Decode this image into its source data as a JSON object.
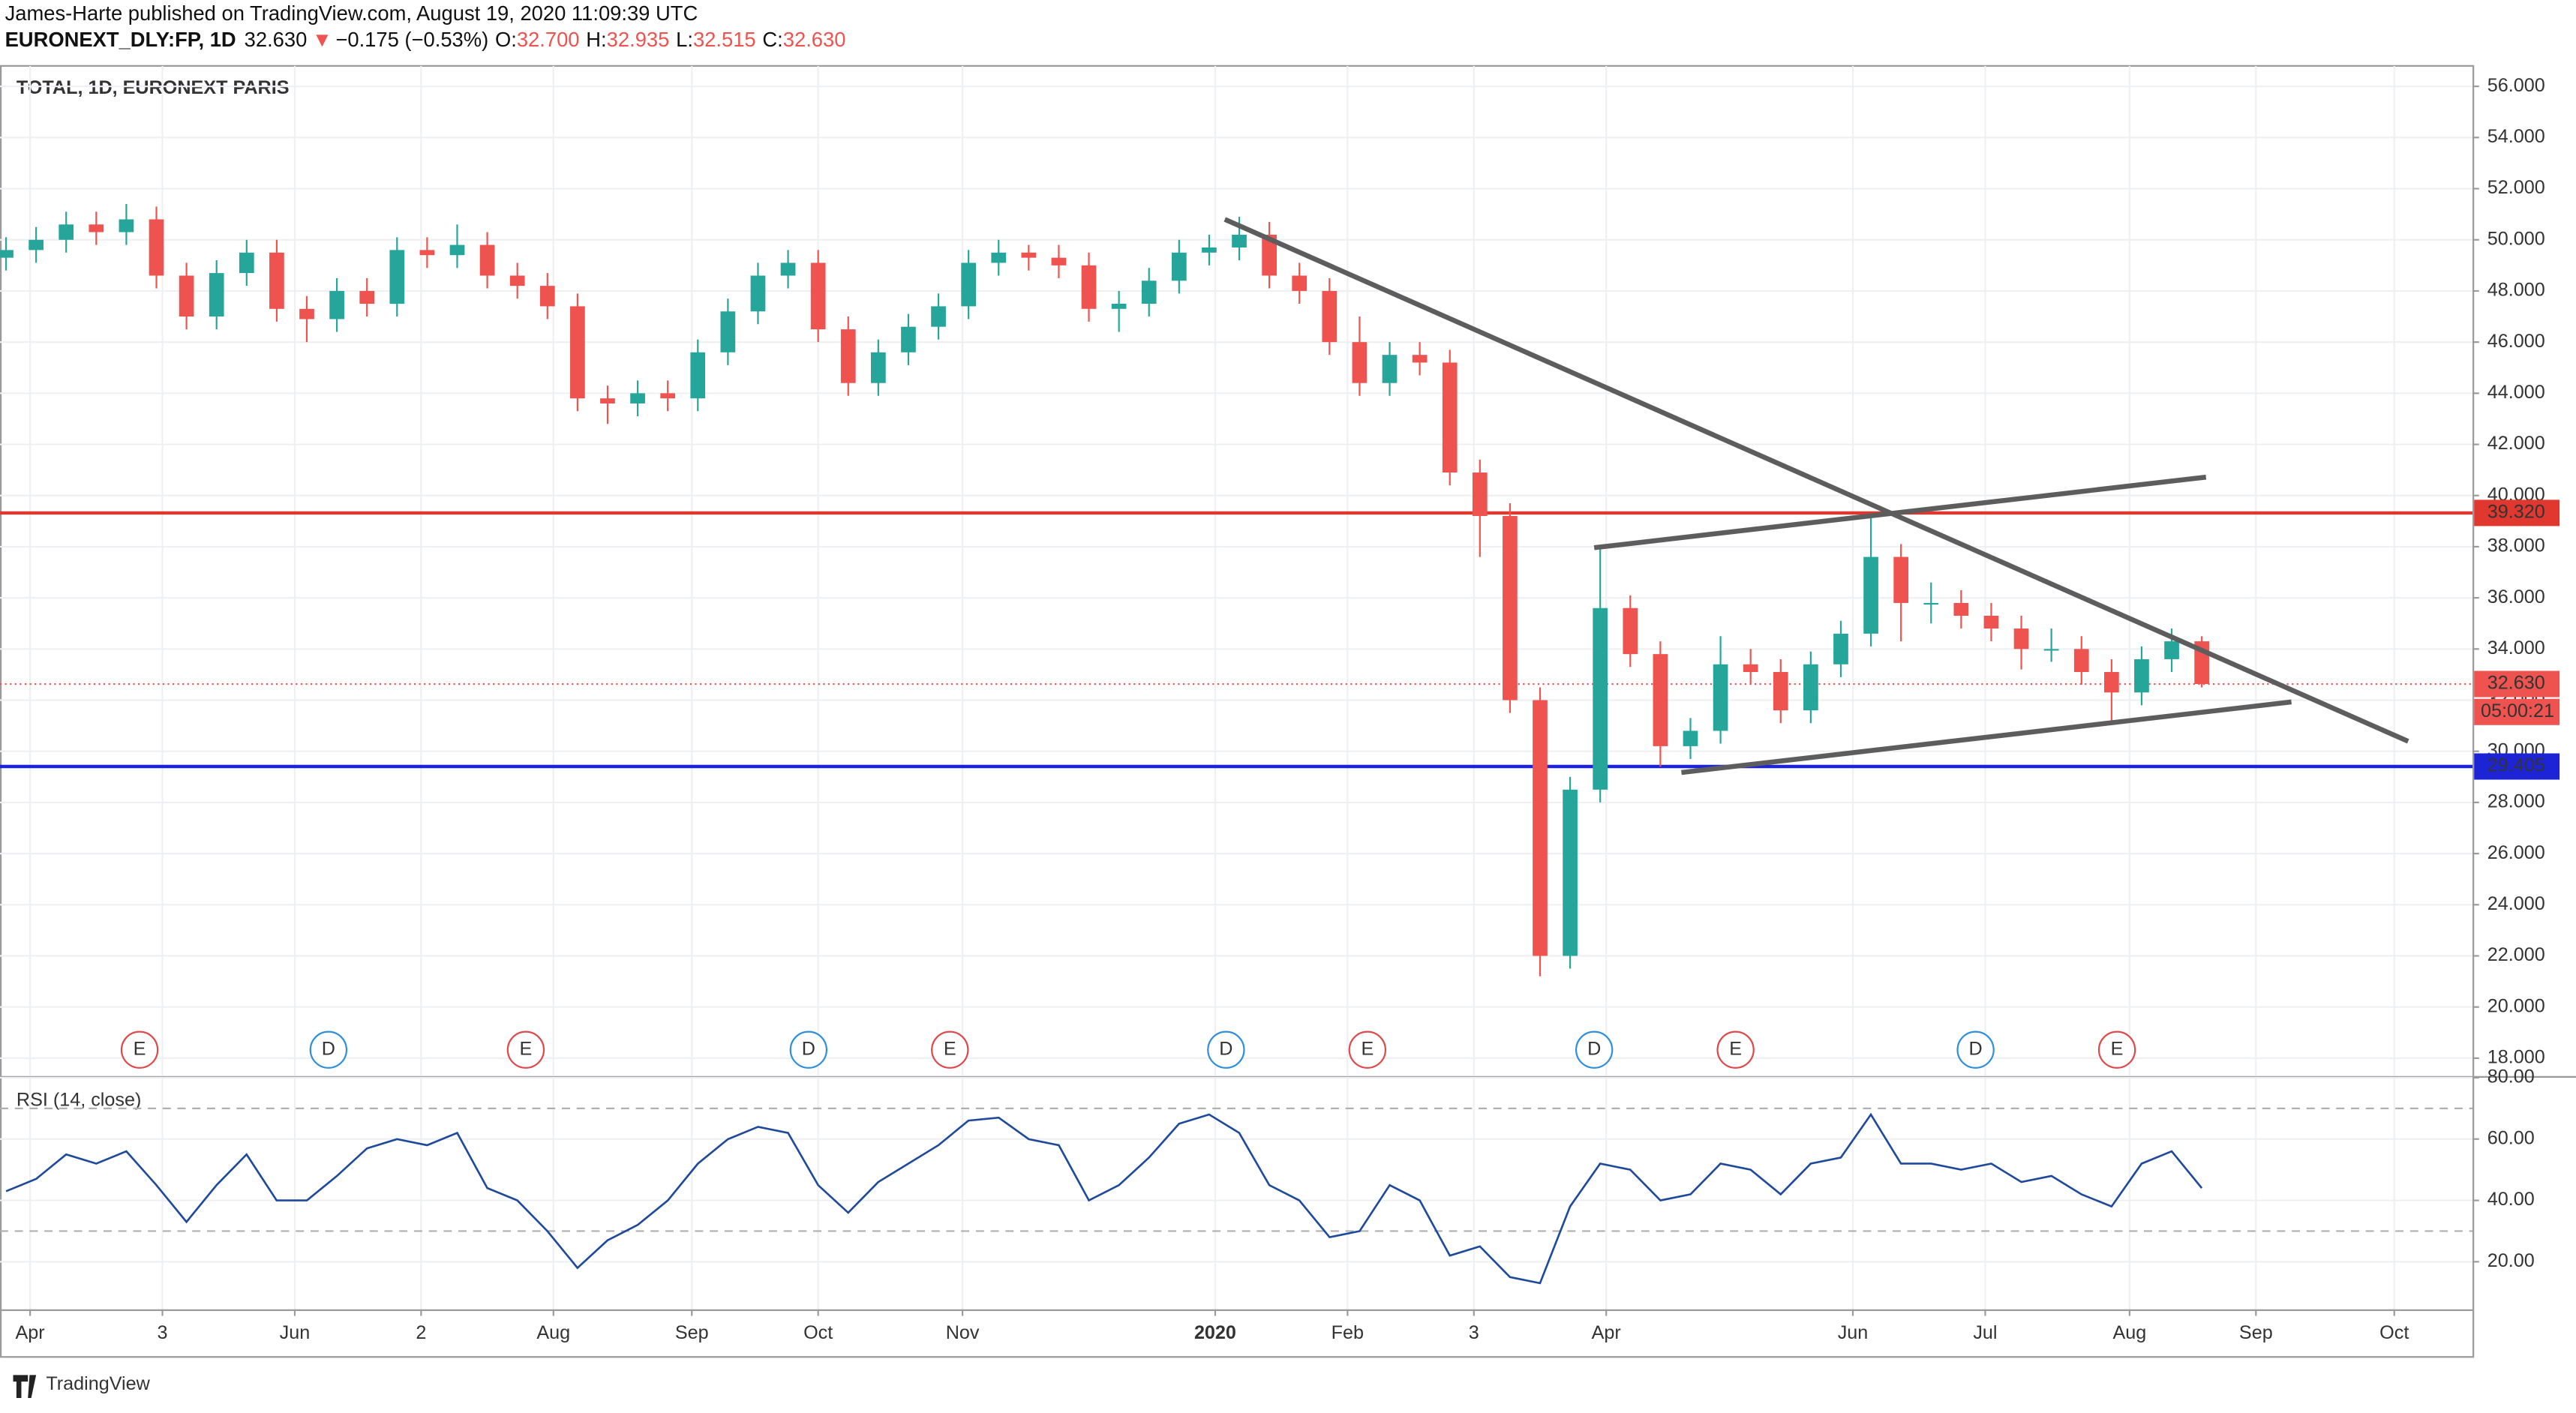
{
  "header": {
    "publisher": "James-Harte published on TradingView.com, August 19, 2020 11:09:39 UTC",
    "symbol": "EURONEXT_DLY:FP, 1D",
    "last": "32.630",
    "arrow": "▼",
    "change": "−0.175 (−0.53%)",
    "ohlc": [
      {
        "label": "O:",
        "value": "32.700"
      },
      {
        "label": "H:",
        "value": "32.935"
      },
      {
        "label": "L:",
        "value": "32.515"
      },
      {
        "label": "C:",
        "value": "32.630"
      }
    ]
  },
  "chart_data": {
    "type": "candlestick",
    "title": "TOTAL, 1D, EURONEXT PARIS",
    "x": [
      1,
      6,
      11,
      16,
      21,
      26,
      31,
      36,
      41,
      46,
      51,
      56,
      61,
      66,
      71,
      76,
      81,
      86,
      91,
      96,
      101,
      106,
      111,
      116,
      121,
      126,
      131,
      136,
      141,
      146,
      151,
      156,
      161,
      166,
      171,
      176,
      181,
      186,
      191,
      196,
      201,
      206,
      211,
      216,
      221,
      226,
      231,
      236,
      241,
      246,
      251,
      256,
      261,
      266,
      271,
      276,
      281,
      286,
      291,
      296,
      301,
      306,
      311,
      316,
      321,
      326,
      331,
      336,
      341,
      346,
      351,
      356,
      361,
      366
    ],
    "open": [
      49.3,
      49.6,
      50.0,
      50.6,
      50.3,
      50.8,
      48.6,
      47.0,
      48.7,
      49.5,
      47.3,
      46.9,
      48.0,
      47.5,
      49.6,
      49.4,
      49.8,
      48.6,
      48.2,
      47.4,
      43.8,
      43.6,
      44.0,
      43.8,
      45.6,
      47.2,
      48.6,
      49.1,
      46.5,
      44.4,
      45.6,
      46.6,
      47.4,
      49.1,
      49.5,
      49.3,
      49.0,
      47.3,
      47.5,
      48.4,
      49.5,
      49.7,
      50.2,
      48.6,
      48.0,
      46.0,
      44.4,
      45.5,
      45.2,
      40.9,
      39.2,
      32.0,
      22.0,
      28.5,
      35.6,
      33.8,
      30.2,
      30.8,
      33.4,
      33.1,
      31.6,
      33.4,
      34.6,
      37.6,
      35.8,
      35.8,
      35.3,
      34.8,
      34.0,
      34.0,
      33.1,
      32.3,
      33.6,
      34.3
    ],
    "high": [
      50.1,
      50.5,
      51.1,
      51.1,
      51.4,
      51.3,
      49.1,
      49.2,
      50.0,
      50.0,
      47.8,
      48.5,
      48.5,
      50.1,
      50.1,
      50.6,
      50.3,
      49.1,
      48.7,
      47.9,
      44.3,
      44.5,
      44.5,
      46.1,
      47.7,
      49.1,
      49.6,
      49.6,
      47.0,
      46.1,
      47.1,
      47.9,
      49.6,
      50.0,
      49.8,
      49.8,
      49.5,
      48.0,
      48.9,
      50.0,
      50.2,
      50.9,
      50.7,
      49.1,
      48.5,
      47.0,
      46.0,
      46.0,
      45.7,
      41.4,
      39.7,
      32.5,
      29.0,
      38.0,
      36.1,
      34.3,
      31.3,
      34.5,
      34.0,
      33.6,
      33.9,
      35.1,
      39.3,
      38.1,
      36.6,
      36.3,
      35.8,
      35.3,
      34.8,
      34.5,
      33.6,
      34.1,
      34.8,
      34.5
    ],
    "low": [
      48.8,
      49.1,
      49.5,
      49.8,
      49.8,
      48.1,
      46.5,
      46.5,
      48.2,
      46.8,
      46.0,
      46.4,
      47.0,
      47.0,
      48.9,
      48.9,
      48.1,
      47.7,
      46.9,
      43.3,
      42.8,
      43.1,
      43.3,
      43.3,
      45.1,
      46.7,
      48.1,
      46.0,
      43.9,
      43.9,
      45.1,
      46.1,
      46.9,
      48.6,
      48.8,
      48.5,
      46.8,
      46.4,
      47.0,
      47.9,
      49.0,
      49.2,
      48.1,
      47.5,
      45.5,
      43.9,
      43.9,
      44.7,
      40.4,
      37.6,
      31.5,
      21.2,
      21.5,
      28.0,
      33.3,
      29.4,
      29.7,
      30.3,
      32.6,
      31.1,
      31.1,
      32.9,
      34.1,
      34.3,
      35.0,
      34.8,
      34.3,
      33.2,
      33.5,
      32.6,
      31.1,
      31.8,
      33.1,
      32.5
    ],
    "close": [
      49.6,
      50.0,
      50.6,
      50.3,
      50.8,
      48.6,
      47.0,
      48.7,
      49.5,
      47.3,
      46.9,
      48.0,
      47.5,
      49.6,
      49.4,
      49.8,
      48.6,
      48.2,
      47.4,
      43.8,
      43.6,
      44.0,
      43.8,
      45.6,
      47.2,
      48.6,
      49.1,
      46.5,
      44.4,
      45.6,
      46.6,
      47.4,
      49.1,
      49.5,
      49.3,
      49.0,
      47.3,
      47.5,
      48.4,
      49.5,
      49.7,
      50.2,
      48.6,
      48.0,
      46.0,
      44.4,
      45.5,
      45.2,
      40.9,
      39.2,
      32.0,
      22.0,
      28.5,
      35.6,
      33.8,
      30.2,
      30.8,
      33.4,
      33.1,
      31.6,
      33.4,
      34.6,
      37.6,
      35.8,
      35.8,
      35.3,
      34.8,
      34.0,
      34.0,
      33.1,
      32.3,
      33.6,
      34.3,
      32.63
    ],
    "up_color": "#26a69a",
    "down_color": "#ef5350",
    "xlim": [
      0,
      411
    ],
    "ylim": [
      17.3,
      56.8
    ],
    "xticks": [
      {
        "value": 5,
        "label": "Apr"
      },
      {
        "value": 27,
        "label": "3"
      },
      {
        "value": 49,
        "label": "Jun"
      },
      {
        "value": 70,
        "label": "2"
      },
      {
        "value": 92,
        "label": "Aug"
      },
      {
        "value": 115,
        "label": "Sep"
      },
      {
        "value": 136,
        "label": "Oct"
      },
      {
        "value": 160,
        "label": "Nov"
      },
      {
        "value": 202,
        "label": "2020"
      },
      {
        "value": 224,
        "label": "Feb"
      },
      {
        "value": 245,
        "label": "3"
      },
      {
        "value": 267,
        "label": "Apr"
      },
      {
        "value": 308,
        "label": "Jun"
      },
      {
        "value": 330,
        "label": "Jul"
      },
      {
        "value": 354,
        "label": "Aug"
      },
      {
        "value": 375,
        "label": "Sep"
      },
      {
        "value": 398,
        "label": "Oct"
      }
    ],
    "yticks": [
      {
        "value": 18,
        "label": "18.000"
      },
      {
        "value": 20,
        "label": "20.000"
      },
      {
        "value": 22,
        "label": "22.000"
      },
      {
        "value": 24,
        "label": "24.000"
      },
      {
        "value": 26,
        "label": "26.000"
      },
      {
        "value": 28,
        "label": "28.000"
      },
      {
        "value": 30,
        "label": "30.000"
      },
      {
        "value": 32,
        "label": "32.000"
      },
      {
        "value": 34,
        "label": "34.000"
      },
      {
        "value": 36,
        "label": "36.000"
      },
      {
        "value": 38,
        "label": "38.000"
      },
      {
        "value": 40,
        "label": "40.000"
      },
      {
        "value": 42,
        "label": "42.000"
      },
      {
        "value": 44,
        "label": "44.000"
      },
      {
        "value": 46,
        "label": "46.000"
      },
      {
        "value": 48,
        "label": "48.000"
      },
      {
        "value": 50,
        "label": "50.000"
      },
      {
        "value": 52,
        "label": "52.000"
      },
      {
        "value": 54,
        "label": "54.000"
      },
      {
        "value": 56,
        "label": "56.000"
      }
    ],
    "grid": true,
    "levels": [
      {
        "value": 39.32,
        "label": "39.320",
        "color": "#e0372f",
        "style": "solid"
      },
      {
        "value": 29.405,
        "label": "29.405",
        "color": "#1c24d6",
        "style": "solid"
      },
      {
        "value": 32.63,
        "label": "32.630",
        "color": "#ef5350",
        "style": "dotted",
        "countdown": "05:00:21"
      }
    ],
    "trendlines": [
      {
        "x": [
          203.6,
          400.3
        ],
        "y": [
          50.8,
          30.39
        ]
      },
      {
        "x": [
          265,
          366.7
        ],
        "y": [
          37.96,
          40.72
        ]
      },
      {
        "x": [
          279.5,
          380.9
        ],
        "y": [
          29.17,
          31.93
        ]
      }
    ],
    "trendline_color": "#5d5d5d",
    "events": [
      {
        "x": 23.2,
        "label": "E",
        "color": "#e0484a"
      },
      {
        "x": 54.6,
        "label": "D",
        "color": "#2f8fdc"
      },
      {
        "x": 87.4,
        "label": "E",
        "color": "#e0484a"
      },
      {
        "x": 134.4,
        "label": "D",
        "color": "#2f8fdc"
      },
      {
        "x": 157.9,
        "label": "E",
        "color": "#e0484a"
      },
      {
        "x": 203.8,
        "label": "D",
        "color": "#2f8fdc"
      },
      {
        "x": 227.3,
        "label": "E",
        "color": "#e0484a"
      },
      {
        "x": 265,
        "label": "D",
        "color": "#2f8fdc"
      },
      {
        "x": 288.5,
        "label": "E",
        "color": "#e0484a"
      },
      {
        "x": 328.4,
        "label": "D",
        "color": "#2f8fdc"
      },
      {
        "x": 351.9,
        "label": "E",
        "color": "#e0484a"
      }
    ],
    "rsi": {
      "title": "RSI (14, close)",
      "color": "#1f4a9c",
      "values": [
        43,
        47,
        55,
        52,
        56,
        45,
        33,
        45,
        55,
        40,
        40,
        48,
        57,
        60,
        58,
        62,
        44,
        40,
        30,
        18,
        27,
        32,
        40,
        52,
        60,
        64,
        62,
        45,
        36,
        46,
        52,
        58,
        66,
        67,
        60,
        58,
        40,
        45,
        54,
        65,
        68,
        62,
        45,
        40,
        28,
        30,
        45,
        40,
        22,
        25,
        15,
        13,
        38,
        52,
        50,
        40,
        42,
        52,
        50,
        42,
        52,
        54,
        68,
        52,
        52,
        50,
        52,
        46,
        48,
        42,
        38,
        52,
        56,
        44
      ],
      "ylim": [
        4.5,
        80
      ],
      "yticks": [
        {
          "value": 20,
          "label": "20.00"
        },
        {
          "value": 40,
          "label": "40.00"
        },
        {
          "value": 60,
          "label": "60.00"
        },
        {
          "value": 80,
          "label": "80.00"
        }
      ],
      "bands": [
        70,
        30
      ]
    }
  },
  "footer": {
    "brand": "TradingView"
  }
}
